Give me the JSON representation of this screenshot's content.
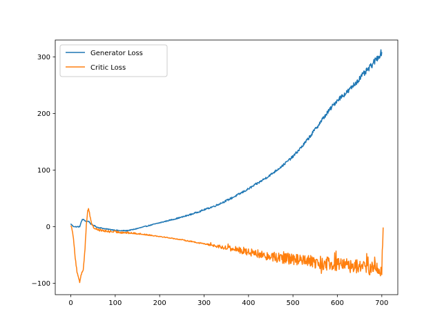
{
  "chart_data": {
    "type": "line",
    "title": "",
    "xlabel": "",
    "ylabel": "",
    "xlim": [
      -35,
      736
    ],
    "ylim": [
      -120,
      330
    ],
    "xticks": [
      0,
      100,
      200,
      300,
      400,
      500,
      600,
      700
    ],
    "yticks": [
      -100,
      0,
      100,
      200,
      300
    ],
    "legend_position": "upper-left",
    "grid": false,
    "series": [
      {
        "name": "Generator Loss",
        "color": "#1f77b4",
        "noise": [
          0.8,
          0.8,
          0.8,
          0.8,
          0.8,
          1.0,
          1.2,
          1.5,
          1.8,
          2.0,
          2.0,
          2.5,
          3.5,
          4.0,
          5.0,
          6.0
        ],
        "points": [
          [
            0,
            5
          ],
          [
            5,
            1
          ],
          [
            10,
            0
          ],
          [
            20,
            0
          ],
          [
            22,
            5
          ],
          [
            26,
            13
          ],
          [
            30,
            12
          ],
          [
            35,
            9
          ],
          [
            40,
            10
          ],
          [
            45,
            5
          ],
          [
            50,
            3
          ],
          [
            60,
            -1
          ],
          [
            80,
            -4
          ],
          [
            100,
            -6
          ],
          [
            110,
            -7
          ],
          [
            125,
            -7
          ],
          [
            140,
            -5
          ],
          [
            160,
            -1
          ],
          [
            180,
            3
          ],
          [
            200,
            7
          ],
          [
            220,
            11
          ],
          [
            250,
            17
          ],
          [
            275,
            23
          ],
          [
            300,
            30
          ],
          [
            325,
            37
          ],
          [
            350,
            46
          ],
          [
            375,
            56
          ],
          [
            400,
            67
          ],
          [
            425,
            79
          ],
          [
            450,
            92
          ],
          [
            475,
            107
          ],
          [
            500,
            124
          ],
          [
            525,
            146
          ],
          [
            550,
            172
          ],
          [
            575,
            199
          ],
          [
            600,
            224
          ],
          [
            625,
            240
          ],
          [
            650,
            262
          ],
          [
            675,
            283
          ],
          [
            700,
            309
          ]
        ]
      },
      {
        "name": "Critic Loss",
        "color": "#ff7f0e",
        "noise": [
          1.0,
          2.0,
          2.0,
          2.0,
          1.5,
          1.0,
          0.8,
          0.8,
          1.0,
          2.0,
          4.0,
          6.0,
          8.0,
          9.0,
          10.0,
          11.0,
          12.0,
          12.0,
          13.0,
          13.0,
          10.0
        ],
        "points": [
          [
            0,
            3
          ],
          [
            3,
            -5
          ],
          [
            6,
            -20
          ],
          [
            10,
            -55
          ],
          [
            14,
            -80
          ],
          [
            18,
            -93
          ],
          [
            20,
            -98
          ],
          [
            23,
            -85
          ],
          [
            28,
            -75
          ],
          [
            32,
            -40
          ],
          [
            35,
            5
          ],
          [
            38,
            28
          ],
          [
            40,
            33
          ],
          [
            43,
            20
          ],
          [
            47,
            5
          ],
          [
            52,
            -2
          ],
          [
            60,
            -5
          ],
          [
            80,
            -8
          ],
          [
            100,
            -9
          ],
          [
            150,
            -12
          ],
          [
            200,
            -17
          ],
          [
            250,
            -23
          ],
          [
            300,
            -30
          ],
          [
            350,
            -37
          ],
          [
            400,
            -44
          ],
          [
            450,
            -52
          ],
          [
            500,
            -58
          ],
          [
            550,
            -63
          ],
          [
            600,
            -67
          ],
          [
            650,
            -70
          ],
          [
            680,
            -74
          ],
          [
            690,
            -72
          ],
          [
            695,
            -80
          ],
          [
            700,
            -78
          ],
          [
            701,
            -40
          ],
          [
            702,
            -30
          ],
          [
            703,
            5
          ]
        ]
      }
    ]
  }
}
